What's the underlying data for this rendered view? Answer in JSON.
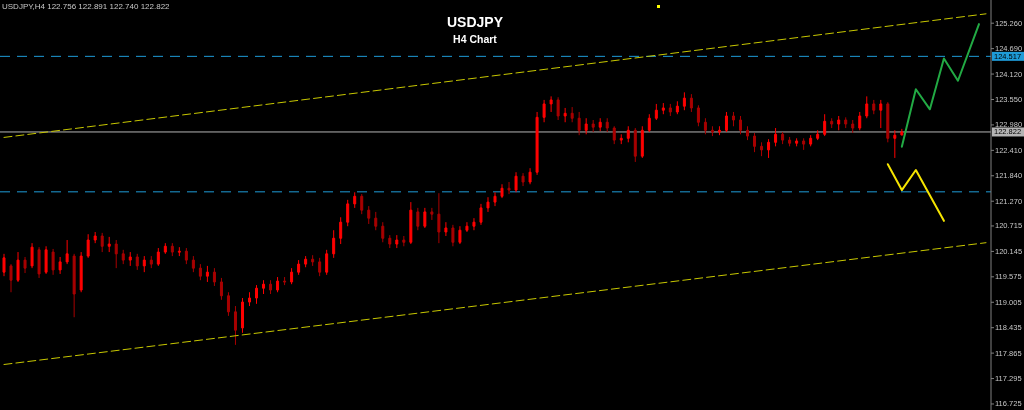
{
  "chart_data": {
    "type": "candlestick",
    "title": "USDJPY",
    "subtitle": "H4 Chart",
    "annotations": [
      "USDJPY,H4 122.756 122.891 122.740 122.822"
    ],
    "categories": [
      null,
      null,
      null,
      null,
      null,
      null,
      null,
      null,
      null,
      null,
      null,
      null,
      null,
      null,
      null,
      null,
      null,
      null,
      null,
      null,
      null,
      null,
      null,
      null,
      null,
      null,
      null,
      null,
      null,
      null,
      null,
      null,
      null,
      null,
      null,
      null,
      null,
      null,
      null,
      null,
      null,
      null,
      null,
      null,
      null,
      null,
      null,
      null,
      null,
      null,
      null,
      null,
      null,
      null,
      null,
      null,
      null,
      null,
      null,
      null,
      null,
      null,
      null,
      null,
      null,
      null,
      null,
      null,
      null,
      null,
      null,
      null,
      null,
      null,
      null,
      null,
      null,
      null,
      null,
      null,
      null,
      null,
      null,
      null,
      null,
      null,
      null,
      null,
      null,
      null,
      null,
      null,
      null,
      null,
      null,
      null,
      null,
      null,
      null,
      null,
      null,
      null,
      null,
      null,
      null,
      null,
      null,
      null,
      null,
      null,
      null,
      null,
      null,
      null,
      null,
      null,
      null,
      null,
      null,
      null,
      null,
      null,
      null,
      null,
      null,
      null,
      null,
      null,
      null,
      null,
      null,
      null,
      null,
      null,
      null,
      null,
      null,
      null,
      null,
      null,
      null
    ],
    "colors": [
      "#ff0000",
      "#a80000",
      "#ff0000",
      "#a80000",
      "#ff0000",
      "#a80000",
      "#ff0000",
      "#a80000",
      "#ff0000",
      "#ff0000",
      "#a80000",
      "#ff0000",
      "#ff0000",
      "#ff0000",
      "#a80000",
      "#ff0000",
      "#a80000",
      "#a80000",
      "#ff0000",
      "#a80000",
      "#ff0000",
      "#a80000",
      "#ff0000",
      "#ff0000",
      "#a80000",
      "#ff0000",
      "#a80000",
      "#a80000",
      "#a80000",
      "#ff0000",
      "#a80000",
      "#a80000",
      "#a80000",
      "#a80000",
      "#ff0000",
      "#ff0000",
      "#ff0000",
      "#ff0000",
      "#a80000",
      "#ff0000",
      "#a80000",
      "#ff0000",
      "#ff0000",
      "#ff0000",
      "#a80000",
      "#a80000",
      "#ff0000",
      "#ff0000",
      "#ff0000",
      "#ff0000",
      "#ff0000",
      "#a80000",
      "#a80000",
      "#a80000",
      "#a80000",
      "#a80000",
      "#ff0000",
      "#a80000",
      "#ff0000",
      "#a80000",
      "#ff0000",
      "#a80000",
      "#a80000",
      "#ff0000",
      "#a80000",
      "#ff0000",
      "#ff0000",
      "#ff0000",
      "#ff0000",
      "#ff0000",
      "#ff0000",
      "#ff0000",
      "#a80000",
      "#ff0000",
      "#a80000",
      "#ff0000",
      "#ff0000",
      "#ff0000",
      "#ff0000",
      "#a80000",
      "#ff0000",
      "#a80000",
      "#a80000",
      "#ff0000",
      "#a80000",
      "#ff0000",
      "#a80000",
      "#a80000",
      "#ff0000",
      "#ff0000",
      "#a80000",
      "#ff0000",
      "#ff0000",
      "#ff0000",
      "#ff0000",
      "#a80000",
      "#ff0000",
      "#ff0000",
      "#a80000",
      "#a80000",
      "#a80000",
      "#a80000",
      "#ff0000",
      "#ff0000",
      "#a80000",
      "#a80000",
      "#a80000",
      "#a80000",
      "#a80000",
      "#ff0000",
      "#ff0000",
      "#a80000",
      "#a80000",
      "#ff0000",
      "#a80000",
      "#ff0000",
      "#ff0000",
      "#ff0000",
      "#a80000",
      "#ff0000",
      "#a80000",
      "#a80000",
      "#ff0000",
      "#ff0000",
      "#a80000",
      "#ff0000",
      "#a80000",
      "#ff0000",
      "#ff0000",
      null,
      null,
      null,
      null,
      null,
      null,
      null,
      null,
      null,
      null,
      null,
      null
    ],
    "ohlc": [
      [
        119.68,
        120.09,
        119.59,
        120.0
      ],
      [
        119.82,
        119.86,
        119.23,
        119.5
      ],
      [
        119.5,
        120.13,
        119.46,
        119.95
      ],
      [
        119.95,
        120.02,
        119.66,
        119.77
      ],
      [
        119.82,
        120.33,
        119.77,
        120.24
      ],
      [
        120.18,
        120.24,
        119.55,
        119.64
      ],
      [
        119.68,
        120.26,
        119.64,
        120.18
      ],
      [
        120.13,
        120.2,
        119.62,
        119.73
      ],
      [
        119.73,
        120.02,
        119.64,
        119.91
      ],
      [
        119.91,
        120.4,
        119.86,
        120.09
      ],
      [
        120.04,
        120.09,
        118.67,
        119.19
      ],
      [
        119.28,
        120.13,
        119.23,
        120.04
      ],
      [
        120.04,
        120.53,
        120.0,
        120.4
      ],
      [
        120.4,
        120.58,
        120.33,
        120.49
      ],
      [
        120.49,
        120.56,
        120.13,
        120.26
      ],
      [
        120.26,
        120.47,
        120.13,
        120.31
      ],
      [
        120.31,
        120.4,
        119.77,
        120.09
      ],
      [
        120.09,
        120.18,
        119.86,
        119.95
      ],
      [
        119.95,
        120.13,
        119.82,
        120.02
      ],
      [
        120.02,
        120.09,
        119.73,
        119.82
      ],
      [
        119.82,
        120.04,
        119.68,
        119.95
      ],
      [
        119.95,
        120.04,
        119.77,
        119.86
      ],
      [
        119.86,
        120.22,
        119.82,
        120.13
      ],
      [
        120.13,
        120.33,
        120.09,
        120.26
      ],
      [
        120.26,
        120.33,
        120.04,
        120.13
      ],
      [
        120.13,
        120.24,
        120.04,
        120.15
      ],
      [
        120.15,
        120.22,
        119.86,
        119.95
      ],
      [
        119.95,
        120.04,
        119.68,
        119.77
      ],
      [
        119.77,
        119.86,
        119.5,
        119.59
      ],
      [
        119.59,
        119.82,
        119.46,
        119.68
      ],
      [
        119.68,
        119.77,
        119.37,
        119.46
      ],
      [
        119.46,
        119.55,
        119.06,
        119.15
      ],
      [
        119.15,
        119.23,
        118.7,
        118.79
      ],
      [
        118.79,
        118.92,
        118.05,
        118.38
      ],
      [
        118.43,
        119.1,
        118.32,
        119.01
      ],
      [
        119.01,
        119.23,
        118.92,
        119.1
      ],
      [
        119.1,
        119.39,
        118.97,
        119.32
      ],
      [
        119.32,
        119.5,
        119.19,
        119.41
      ],
      [
        119.41,
        119.5,
        119.19,
        119.28
      ],
      [
        119.28,
        119.57,
        119.23,
        119.48
      ],
      [
        119.48,
        119.57,
        119.39,
        119.46
      ],
      [
        119.46,
        119.77,
        119.41,
        119.68
      ],
      [
        119.68,
        119.95,
        119.62,
        119.86
      ],
      [
        119.86,
        120.04,
        119.79,
        119.97
      ],
      [
        119.97,
        120.06,
        119.82,
        119.91
      ],
      [
        119.91,
        120.0,
        119.59,
        119.68
      ],
      [
        119.68,
        120.18,
        119.62,
        120.09
      ],
      [
        120.09,
        120.62,
        120.0,
        120.44
      ],
      [
        120.44,
        120.91,
        120.31,
        120.8
      ],
      [
        120.8,
        121.3,
        120.71,
        121.21
      ],
      [
        121.21,
        121.47,
        121.12,
        121.38
      ],
      [
        121.38,
        121.43,
        120.98,
        121.07
      ],
      [
        121.07,
        121.16,
        120.76,
        120.89
      ],
      [
        120.89,
        121.03,
        120.62,
        120.71
      ],
      [
        120.71,
        120.8,
        120.35,
        120.44
      ],
      [
        120.44,
        120.51,
        120.22,
        120.31
      ],
      [
        120.31,
        120.51,
        120.22,
        120.4
      ],
      [
        120.4,
        120.49,
        120.26,
        120.35
      ],
      [
        120.35,
        121.25,
        120.31,
        121.07
      ],
      [
        121.03,
        121.12,
        120.62,
        120.71
      ],
      [
        120.71,
        121.12,
        120.67,
        121.03
      ],
      [
        121.03,
        121.12,
        120.85,
        120.98
      ],
      [
        120.98,
        121.45,
        120.33,
        120.58
      ],
      [
        120.58,
        120.8,
        120.49,
        120.67
      ],
      [
        120.67,
        120.74,
        120.26,
        120.35
      ],
      [
        120.35,
        120.71,
        120.31,
        120.62
      ],
      [
        120.62,
        120.8,
        120.58,
        120.71
      ],
      [
        120.71,
        120.89,
        120.62,
        120.8
      ],
      [
        120.8,
        121.21,
        120.74,
        121.12
      ],
      [
        121.12,
        121.36,
        121.03,
        121.25
      ],
      [
        121.25,
        121.47,
        121.16,
        121.38
      ],
      [
        121.38,
        121.65,
        121.34,
        121.56
      ],
      [
        121.56,
        121.7,
        121.43,
        121.52
      ],
      [
        121.52,
        121.92,
        121.47,
        121.83
      ],
      [
        121.83,
        121.9,
        121.61,
        121.7
      ],
      [
        121.7,
        122.01,
        121.65,
        121.92
      ],
      [
        121.92,
        123.27,
        121.86,
        123.15
      ],
      [
        123.15,
        123.54,
        123.04,
        123.45
      ],
      [
        123.45,
        123.62,
        123.27,
        123.54
      ],
      [
        123.54,
        123.6,
        123.09,
        123.18
      ],
      [
        123.18,
        123.36,
        123.04,
        123.24
      ],
      [
        123.24,
        123.38,
        123.04,
        123.13
      ],
      [
        123.13,
        123.27,
        122.75,
        122.86
      ],
      [
        122.86,
        123.13,
        122.77,
        123.0
      ],
      [
        123.0,
        123.09,
        122.82,
        122.93
      ],
      [
        122.93,
        123.13,
        122.84,
        123.04
      ],
      [
        123.04,
        123.13,
        122.82,
        122.91
      ],
      [
        122.91,
        122.95,
        122.55,
        122.64
      ],
      [
        122.64,
        122.77,
        122.55,
        122.68
      ],
      [
        122.68,
        122.95,
        122.59,
        122.86
      ],
      [
        122.86,
        122.91,
        122.15,
        122.28
      ],
      [
        122.28,
        122.95,
        122.24,
        122.86
      ],
      [
        122.86,
        123.22,
        122.82,
        123.13
      ],
      [
        123.13,
        123.45,
        123.09,
        123.31
      ],
      [
        123.31,
        123.47,
        123.22,
        123.36
      ],
      [
        123.36,
        123.45,
        123.18,
        123.27
      ],
      [
        123.27,
        123.51,
        123.22,
        123.4
      ],
      [
        123.4,
        123.71,
        123.31,
        123.58
      ],
      [
        123.58,
        123.67,
        123.27,
        123.36
      ],
      [
        123.36,
        123.42,
        122.95,
        123.04
      ],
      [
        123.04,
        123.13,
        122.77,
        122.86
      ],
      [
        122.86,
        122.95,
        122.73,
        122.82
      ],
      [
        122.82,
        122.95,
        122.75,
        122.86
      ],
      [
        122.86,
        123.27,
        122.82,
        123.18
      ],
      [
        123.18,
        123.27,
        122.95,
        123.09
      ],
      [
        123.09,
        123.18,
        122.77,
        122.86
      ],
      [
        122.86,
        122.95,
        122.64,
        122.73
      ],
      [
        122.73,
        122.8,
        122.37,
        122.5
      ],
      [
        122.5,
        122.59,
        122.28,
        122.42
      ],
      [
        122.42,
        122.66,
        122.24,
        122.59
      ],
      [
        122.59,
        122.91,
        122.5,
        122.77
      ],
      [
        122.77,
        122.82,
        122.55,
        122.64
      ],
      [
        122.64,
        122.71,
        122.5,
        122.57
      ],
      [
        122.57,
        122.68,
        122.5,
        122.62
      ],
      [
        122.62,
        122.68,
        122.42,
        122.55
      ],
      [
        122.55,
        122.75,
        122.5,
        122.68
      ],
      [
        122.68,
        122.86,
        122.64,
        122.77
      ],
      [
        122.77,
        123.22,
        122.73,
        123.06
      ],
      [
        123.06,
        123.13,
        122.91,
        123.0
      ],
      [
        123.0,
        123.18,
        122.86,
        123.09
      ],
      [
        123.09,
        123.15,
        122.91,
        123.0
      ],
      [
        123.0,
        123.09,
        122.8,
        122.91
      ],
      [
        122.91,
        123.27,
        122.86,
        123.18
      ],
      [
        123.18,
        123.62,
        123.13,
        123.45
      ],
      [
        123.45,
        123.54,
        123.22,
        123.31
      ],
      [
        123.31,
        123.54,
        122.91,
        123.45
      ],
      [
        123.45,
        123.49,
        122.59,
        122.68
      ],
      [
        122.68,
        122.86,
        122.24,
        122.75
      ],
      [
        122.756,
        122.891,
        122.74,
        122.822
      ],
      null,
      null,
      null,
      null,
      null,
      null,
      null,
      null,
      null,
      null,
      null,
      null
    ],
    "series": [
      {
        "type": "line",
        "color": "#c8c800",
        "line_style": "dashed",
        "values": [
          122.7,
          null,
          null,
          null,
          null,
          null,
          null,
          null,
          null,
          null,
          null,
          null,
          null,
          null,
          null,
          null,
          null,
          null,
          null,
          null,
          null,
          null,
          null,
          null,
          null,
          null,
          null,
          null,
          null,
          null,
          null,
          null,
          null,
          null,
          null,
          null,
          null,
          null,
          null,
          null,
          null,
          null,
          null,
          null,
          null,
          null,
          null,
          null,
          null,
          null,
          null,
          null,
          null,
          null,
          null,
          null,
          null,
          null,
          null,
          null,
          null,
          null,
          null,
          null,
          null,
          null,
          null,
          null,
          null,
          null,
          null,
          null,
          null,
          null,
          null,
          null,
          null,
          null,
          null,
          null,
          null,
          null,
          null,
          null,
          null,
          null,
          null,
          null,
          null,
          null,
          null,
          null,
          null,
          null,
          null,
          null,
          null,
          null,
          null,
          null,
          null,
          null,
          null,
          null,
          null,
          null,
          null,
          null,
          null,
          null,
          null,
          null,
          null,
          null,
          null,
          null,
          null,
          null,
          null,
          null,
          null,
          null,
          null,
          null,
          null,
          null,
          null,
          null,
          null,
          null,
          null,
          null,
          null,
          null,
          null,
          null,
          null,
          null,
          null,
          null,
          125.47
        ]
      },
      {
        "type": "line",
        "color": "#c8c800",
        "line_style": "dashed",
        "values": [
          117.61,
          null,
          null,
          null,
          null,
          null,
          null,
          null,
          null,
          null,
          null,
          null,
          null,
          null,
          null,
          null,
          null,
          null,
          null,
          null,
          null,
          null,
          null,
          null,
          null,
          null,
          null,
          null,
          null,
          null,
          null,
          null,
          null,
          null,
          null,
          null,
          null,
          null,
          null,
          null,
          null,
          null,
          null,
          null,
          null,
          null,
          null,
          null,
          null,
          null,
          null,
          null,
          null,
          null,
          null,
          null,
          null,
          null,
          null,
          null,
          null,
          null,
          null,
          null,
          null,
          null,
          null,
          null,
          null,
          null,
          null,
          null,
          null,
          null,
          null,
          null,
          null,
          null,
          null,
          null,
          null,
          null,
          null,
          null,
          null,
          null,
          null,
          null,
          null,
          null,
          null,
          null,
          null,
          null,
          null,
          null,
          null,
          null,
          null,
          null,
          null,
          null,
          null,
          null,
          null,
          null,
          null,
          null,
          null,
          null,
          null,
          null,
          null,
          null,
          null,
          null,
          null,
          null,
          null,
          null,
          null,
          null,
          null,
          null,
          null,
          null,
          null,
          null,
          null,
          null,
          null,
          null,
          null,
          null,
          null,
          null,
          null,
          null,
          null,
          null,
          120.34
        ]
      },
      {
        "type": "line",
        "color": "#22aa44",
        "line_style": "solid",
        "values": [
          null,
          null,
          null,
          null,
          null,
          null,
          null,
          null,
          null,
          null,
          null,
          null,
          null,
          null,
          null,
          null,
          null,
          null,
          null,
          null,
          null,
          null,
          null,
          null,
          null,
          null,
          null,
          null,
          null,
          null,
          null,
          null,
          null,
          null,
          null,
          null,
          null,
          null,
          null,
          null,
          null,
          null,
          null,
          null,
          null,
          null,
          null,
          null,
          null,
          null,
          null,
          null,
          null,
          null,
          null,
          null,
          null,
          null,
          null,
          null,
          null,
          null,
          null,
          null,
          null,
          null,
          null,
          null,
          null,
          null,
          null,
          null,
          null,
          null,
          null,
          null,
          null,
          null,
          null,
          null,
          null,
          null,
          null,
          null,
          null,
          null,
          null,
          null,
          null,
          null,
          null,
          null,
          null,
          null,
          null,
          null,
          null,
          null,
          null,
          null,
          null,
          null,
          null,
          null,
          null,
          null,
          null,
          null,
          null,
          null,
          null,
          null,
          null,
          null,
          null,
          null,
          null,
          null,
          null,
          null,
          null,
          null,
          null,
          null,
          null,
          null,
          null,
          null,
          122.49,
          null,
          123.78,
          null,
          123.33,
          null,
          124.47,
          null,
          123.97,
          null,
          null,
          125.24,
          null
        ]
      },
      {
        "type": "line",
        "color": "#f5e400",
        "line_style": "solid",
        "values": [
          null,
          null,
          null,
          null,
          null,
          null,
          null,
          null,
          null,
          null,
          null,
          null,
          null,
          null,
          null,
          null,
          null,
          null,
          null,
          null,
          null,
          null,
          null,
          null,
          null,
          null,
          null,
          null,
          null,
          null,
          null,
          null,
          null,
          null,
          null,
          null,
          null,
          null,
          null,
          null,
          null,
          null,
          null,
          null,
          null,
          null,
          null,
          null,
          null,
          null,
          null,
          null,
          null,
          null,
          null,
          null,
          null,
          null,
          null,
          null,
          null,
          null,
          null,
          null,
          null,
          null,
          null,
          null,
          null,
          null,
          null,
          null,
          null,
          null,
          null,
          null,
          null,
          null,
          null,
          null,
          null,
          null,
          null,
          null,
          null,
          null,
          null,
          null,
          null,
          null,
          null,
          null,
          null,
          null,
          null,
          null,
          null,
          null,
          null,
          null,
          null,
          null,
          null,
          null,
          null,
          null,
          null,
          null,
          null,
          null,
          null,
          null,
          null,
          null,
          null,
          null,
          null,
          null,
          null,
          null,
          null,
          null,
          null,
          null,
          null,
          null,
          122.1,
          null,
          121.52,
          null,
          121.97,
          null,
          null,
          null,
          120.83,
          null,
          null,
          null,
          null,
          null,
          null
        ]
      }
    ],
    "ylim": [
      116.59,
      125.78
    ],
    "yticks": [
      116.725,
      117.295,
      117.865,
      118.435,
      119.005,
      119.575,
      120.145,
      120.715,
      {
        "value": 121.27,
        "label": "121.270"
      },
      {
        "value": 121.84,
        "label": "121.840"
      },
      {
        "value": 122.41,
        "label": "122.410"
      },
      {
        "value": 122.98,
        "label": "122.980"
      },
      {
        "value": 123.55,
        "label": "123.550"
      },
      {
        "value": 124.12,
        "label": "124.120"
      },
      {
        "value": 124.69,
        "label": "124.690"
      },
      {
        "value": 125.26,
        "label": "125.260"
      }
    ],
    "tick_labels": "y",
    "ref_lines": [
      {
        "axis": "y",
        "value": 124.517,
        "label": "124.517",
        "color": "#1e9bd7",
        "line_style": "dashed"
      },
      {
        "axis": "y",
        "value": 122.822,
        "label": "122.822",
        "color": "#b4b4b4",
        "line_style": "solid"
      },
      {
        "axis": "y",
        "value": 121.48,
        "color": "#1e9bd7",
        "line_style": "dashed"
      }
    ]
  }
}
